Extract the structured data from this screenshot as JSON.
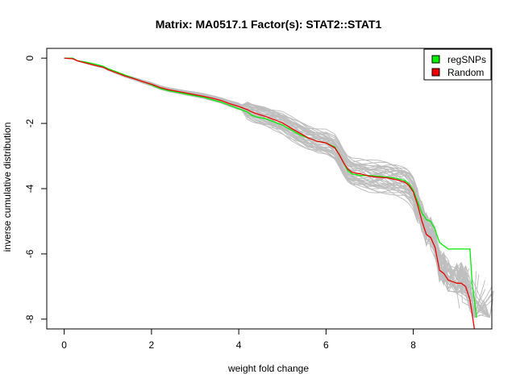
{
  "chart_data": {
    "type": "line",
    "title": "Matrix: MA0517.1 Factor(s): STAT2::STAT1",
    "xlabel": "weight fold change",
    "ylabel": "inverse cumulative distribution",
    "xlim": [
      -0.4,
      9.8
    ],
    "ylim": [
      -8.3,
      0.3
    ],
    "xticks": [
      0,
      2,
      4,
      6,
      8
    ],
    "yticks": [
      0,
      -2,
      -4,
      -6,
      -8
    ],
    "legend": {
      "position": "top-right",
      "entries": [
        {
          "label": "regSNPs",
          "color": "#00ee00"
        },
        {
          "label": "Random",
          "color": "#ee0000"
        }
      ]
    },
    "colors": {
      "regsnps": "#00ee00",
      "random": "#ee0000",
      "background_lines": "#bebebe"
    },
    "series": [
      {
        "name": "regSNPs",
        "x": [
          0,
          0.2,
          0.3,
          0.5,
          0.7,
          0.9,
          1.0,
          1.2,
          1.4,
          1.6,
          1.8,
          2.0,
          2.1,
          2.2,
          2.4,
          2.6,
          2.8,
          3.0,
          3.2,
          3.4,
          3.6,
          3.8,
          4.0,
          4.2,
          4.3,
          4.4,
          4.6,
          4.8,
          5.0,
          5.2,
          5.4,
          5.6,
          5.8,
          6.0,
          6.2,
          6.3,
          6.4,
          6.5,
          6.6,
          6.8,
          7.0,
          7.2,
          7.4,
          7.6,
          7.8,
          7.9,
          8.0,
          8.1,
          8.2,
          8.3,
          8.4,
          8.5,
          8.6,
          8.7,
          8.8,
          9.0,
          9.2,
          9.3,
          9.35,
          9.45
        ],
        "y": [
          0,
          0,
          -0.08,
          -0.12,
          -0.18,
          -0.25,
          -0.32,
          -0.42,
          -0.52,
          -0.62,
          -0.72,
          -0.82,
          -0.88,
          -0.93,
          -1.0,
          -1.05,
          -1.1,
          -1.15,
          -1.2,
          -1.28,
          -1.35,
          -1.45,
          -1.55,
          -1.65,
          -1.75,
          -1.8,
          -1.85,
          -1.95,
          -2.05,
          -2.2,
          -2.35,
          -2.45,
          -2.55,
          -2.6,
          -2.72,
          -2.95,
          -3.2,
          -3.45,
          -3.55,
          -3.6,
          -3.6,
          -3.62,
          -3.65,
          -3.68,
          -3.75,
          -3.85,
          -4.05,
          -4.4,
          -4.75,
          -4.95,
          -5.0,
          -5.25,
          -5.65,
          -5.75,
          -5.85,
          -5.85,
          -5.85,
          -5.85,
          -6.9,
          -7.95
        ]
      },
      {
        "name": "Random",
        "x": [
          0,
          0.2,
          0.3,
          0.5,
          0.7,
          0.9,
          1.0,
          1.2,
          1.4,
          1.6,
          1.8,
          2.0,
          2.1,
          2.2,
          2.4,
          2.6,
          2.8,
          3.0,
          3.2,
          3.4,
          3.6,
          3.8,
          4.0,
          4.2,
          4.3,
          4.4,
          4.6,
          4.8,
          5.0,
          5.2,
          5.4,
          5.6,
          5.8,
          6.0,
          6.2,
          6.3,
          6.4,
          6.5,
          6.6,
          6.8,
          7.0,
          7.2,
          7.4,
          7.6,
          7.8,
          7.9,
          8.0,
          8.1,
          8.2,
          8.3,
          8.4,
          8.5,
          8.6,
          8.7,
          8.8,
          9.0,
          9.1,
          9.2,
          9.3,
          9.4
        ],
        "y": [
          0,
          -0.02,
          -0.08,
          -0.15,
          -0.22,
          -0.28,
          -0.35,
          -0.45,
          -0.55,
          -0.63,
          -0.72,
          -0.8,
          -0.85,
          -0.9,
          -0.97,
          -1.02,
          -1.07,
          -1.12,
          -1.17,
          -1.23,
          -1.3,
          -1.4,
          -1.48,
          -1.58,
          -1.65,
          -1.7,
          -1.78,
          -1.88,
          -1.98,
          -2.15,
          -2.3,
          -2.45,
          -2.55,
          -2.6,
          -2.75,
          -2.95,
          -3.2,
          -3.4,
          -3.5,
          -3.55,
          -3.62,
          -3.65,
          -3.67,
          -3.72,
          -3.8,
          -3.9,
          -4.1,
          -4.5,
          -5.0,
          -5.4,
          -5.5,
          -5.8,
          -6.5,
          -6.6,
          -6.8,
          -6.9,
          -6.9,
          -7.0,
          -7.4,
          -8.3
        ]
      }
    ]
  }
}
